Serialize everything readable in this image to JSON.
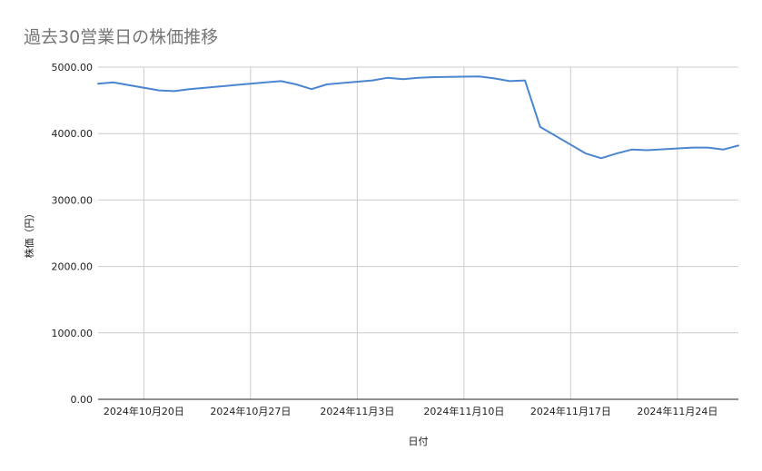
{
  "chart_data": {
    "type": "line",
    "title": "過去30営業日の株価推移",
    "xlabel": "日付",
    "ylabel": "株価（円）",
    "ylim": [
      0,
      5000
    ],
    "yticks": [
      0,
      1000,
      2000,
      3000,
      4000,
      5000
    ],
    "ytick_labels": [
      "0.00",
      "1000.00",
      "2000.00",
      "3000.00",
      "4000.00",
      "5000.00"
    ],
    "xlim": [
      "2024-10-17",
      "2024-11-28"
    ],
    "xticks": [
      "2024-10-20",
      "2024-10-27",
      "2024-11-03",
      "2024-11-10",
      "2024-11-17",
      "2024-11-24"
    ],
    "xtick_labels": [
      "2024年10月20日",
      "2024年10月27日",
      "2024年11月3日",
      "2024年11月10日",
      "2024年11月17日",
      "2024年11月24日"
    ],
    "grid": true,
    "line_color": "#4a86d0",
    "series": [
      {
        "x": [
          "2024-10-17",
          "2024-10-18",
          "2024-10-21",
          "2024-10-22",
          "2024-10-23",
          "2024-10-24",
          "2024-10-25",
          "2024-10-28",
          "2024-10-29",
          "2024-10-30",
          "2024-10-31",
          "2024-11-01",
          "2024-11-04",
          "2024-11-05",
          "2024-11-06",
          "2024-11-07",
          "2024-11-08",
          "2024-11-11",
          "2024-11-12",
          "2024-11-13",
          "2024-11-14",
          "2024-11-15",
          "2024-11-18",
          "2024-11-19",
          "2024-11-20",
          "2024-11-21",
          "2024-11-22",
          "2024-11-25",
          "2024-11-26",
          "2024-11-27",
          "2024-11-28"
        ],
        "values": [
          4750,
          4770,
          4650,
          4640,
          4670,
          4690,
          4710,
          4770,
          4790,
          4740,
          4670,
          4740,
          4800,
          4840,
          4820,
          4840,
          4850,
          4860,
          4830,
          4790,
          4800,
          4100,
          3700,
          3630,
          3700,
          3760,
          3750,
          3790,
          3790,
          3760,
          3820
        ]
      }
    ]
  }
}
